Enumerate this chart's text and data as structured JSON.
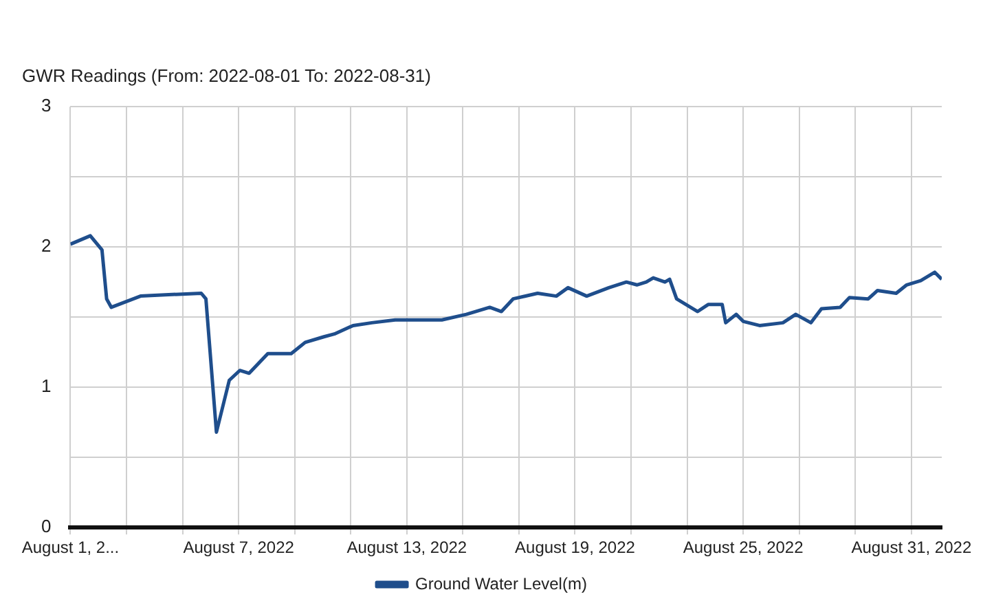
{
  "chart_data": {
    "type": "line",
    "title": "GWR Readings (From: 2022-08-01 To: 2022-08-31)",
    "legend": "bottom",
    "grid": true,
    "marker": "none",
    "line_style": "solid",
    "xlim": [
      "2022-08-01",
      "2022-09-01T02:00"
    ],
    "xticks": [
      {
        "value": "2022-08-01",
        "label": "August 1, 2..."
      },
      {
        "value": "2022-08-03",
        "label": null
      },
      {
        "value": "2022-08-05",
        "label": null
      },
      {
        "value": "2022-08-07",
        "label": "August 7, 2022"
      },
      {
        "value": "2022-08-09",
        "label": null
      },
      {
        "value": "2022-08-11",
        "label": null
      },
      {
        "value": "2022-08-13",
        "label": "August 13, 2022"
      },
      {
        "value": "2022-08-15",
        "label": null
      },
      {
        "value": "2022-08-17",
        "label": null
      },
      {
        "value": "2022-08-19",
        "label": "August 19, 2022"
      },
      {
        "value": "2022-08-21",
        "label": null
      },
      {
        "value": "2022-08-23",
        "label": null
      },
      {
        "value": "2022-08-25",
        "label": "August 25, 2022"
      },
      {
        "value": "2022-08-27",
        "label": null
      },
      {
        "value": "2022-08-29",
        "label": null
      },
      {
        "value": "2022-08-31",
        "label": "August 31, 2022"
      }
    ],
    "ylim": [
      0,
      3
    ],
    "yticks": [
      0,
      {
        "value": 0.5,
        "label": null
      },
      1,
      {
        "value": 1.5,
        "label": null
      },
      2,
      {
        "value": 2.5,
        "label": null
      },
      3
    ],
    "series": [
      {
        "name": "Ground Water Level(m)",
        "color": "#1f4e8c",
        "x": [
          "2022-08-01T00:00",
          "2022-08-01T17:00",
          "2022-08-02T03:00",
          "2022-08-02T07:00",
          "2022-08-02T11:00",
          "2022-08-03T12:00",
          "2022-08-04T12:00",
          "2022-08-05T16:00",
          "2022-08-05T20:00",
          "2022-08-06T05:00",
          "2022-08-06T16:00",
          "2022-08-07T01:00",
          "2022-08-07T09:00",
          "2022-08-08T01:00",
          "2022-08-08T21:00",
          "2022-08-09T09:00",
          "2022-08-10T01:00",
          "2022-08-10T10:00",
          "2022-08-11T02:00",
          "2022-08-11T18:00",
          "2022-08-12T14:00",
          "2022-08-14T06:00",
          "2022-08-15T03:00",
          "2022-08-15T23:00",
          "2022-08-16T09:00",
          "2022-08-16T19:00",
          "2022-08-17T16:00",
          "2022-08-18T08:00",
          "2022-08-18T18:00",
          "2022-08-19T10:00",
          "2022-08-20T05:00",
          "2022-08-20T20:00",
          "2022-08-21T05:00",
          "2022-08-21T13:00",
          "2022-08-21T19:00",
          "2022-08-22T05:00",
          "2022-08-22T09:00",
          "2022-08-22T15:00",
          "2022-08-23T09:00",
          "2022-08-23T18:00",
          "2022-08-24T06:00",
          "2022-08-24T09:00",
          "2022-08-24T18:00",
          "2022-08-25T00:00",
          "2022-08-25T14:00",
          "2022-08-26T10:00",
          "2022-08-26T21:00",
          "2022-08-27T10:00",
          "2022-08-27T19:00",
          "2022-08-28T11:00",
          "2022-08-28T19:00",
          "2022-08-29T11:00",
          "2022-08-29T19:00",
          "2022-08-30T11:00",
          "2022-08-30T20:00",
          "2022-08-31T08:00",
          "2022-08-31T20:00",
          "2022-09-01T02:00"
        ],
        "values": [
          2.02,
          2.08,
          1.98,
          1.63,
          1.57,
          1.65,
          1.66,
          1.67,
          1.63,
          0.68,
          1.05,
          1.12,
          1.1,
          1.24,
          1.24,
          1.32,
          1.36,
          1.38,
          1.44,
          1.46,
          1.48,
          1.48,
          1.52,
          1.57,
          1.54,
          1.63,
          1.67,
          1.65,
          1.71,
          1.65,
          1.71,
          1.75,
          1.73,
          1.75,
          1.78,
          1.75,
          1.77,
          1.63,
          1.54,
          1.59,
          1.59,
          1.46,
          1.52,
          1.47,
          1.44,
          1.46,
          1.52,
          1.46,
          1.56,
          1.57,
          1.64,
          1.63,
          1.69,
          1.67,
          1.73,
          1.76,
          1.82,
          1.77
        ]
      }
    ]
  }
}
